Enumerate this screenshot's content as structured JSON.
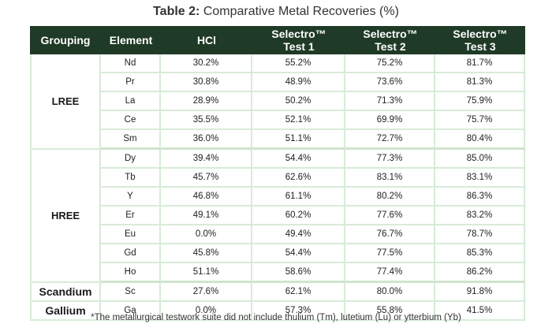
{
  "title": {
    "label": "Table 2:",
    "text": "Comparative Metal Recoveries (%)"
  },
  "headers": {
    "grouping": "Grouping",
    "element": "Element",
    "hcl": "HCl",
    "t1_a": "Selectro™",
    "t1_b": "Test 1",
    "t2_a": "Selectro™",
    "t2_b": "Test 2",
    "t3_a": "Selectro™",
    "t3_b": "Test 3"
  },
  "groups": [
    {
      "name": "LREE",
      "rows": [
        {
          "element": "Nd",
          "hcl": "30.2%",
          "t1": "55.2%",
          "t2": "75.2%",
          "t3": "81.7%"
        },
        {
          "element": "Pr",
          "hcl": "30.8%",
          "t1": "48.9%",
          "t2": "73.6%",
          "t3": "81.3%"
        },
        {
          "element": "La",
          "hcl": "28.9%",
          "t1": "50.2%",
          "t2": "71.3%",
          "t3": "75.9%"
        },
        {
          "element": "Ce",
          "hcl": "35.5%",
          "t1": "52.1%",
          "t2": "69.9%",
          "t3": "75.7%"
        },
        {
          "element": "Sm",
          "hcl": "36.0%",
          "t1": "51.1%",
          "t2": "72.7%",
          "t3": "80.4%"
        }
      ]
    },
    {
      "name": "HREE",
      "rows": [
        {
          "element": "Dy",
          "hcl": "39.4%",
          "t1": "54.4%",
          "t2": "77.3%",
          "t3": "85.0%"
        },
        {
          "element": "Tb",
          "hcl": "45.7%",
          "t1": "62.6%",
          "t2": "83.1%",
          "t3": "83.1%"
        },
        {
          "element": "Y",
          "hcl": "46.8%",
          "t1": "61.1%",
          "t2": "80.2%",
          "t3": "86.3%"
        },
        {
          "element": "Er",
          "hcl": "49.1%",
          "t1": "60.2%",
          "t2": "77.6%",
          "t3": "83.2%"
        },
        {
          "element": "Eu",
          "hcl": "0.0%",
          "t1": "49.4%",
          "t2": "76.7%",
          "t3": "78.7%"
        },
        {
          "element": "Gd",
          "hcl": "45.8%",
          "t1": "54.4%",
          "t2": "77.5%",
          "t3": "85.3%"
        },
        {
          "element": "Ho",
          "hcl": "51.1%",
          "t1": "58.6%",
          "t2": "77.4%",
          "t3": "86.2%"
        }
      ]
    },
    {
      "name": "Scandium",
      "rows": [
        {
          "element": "Sc",
          "hcl": "27.6%",
          "t1": "62.1%",
          "t2": "80.0%",
          "t3": "91.8%"
        }
      ]
    },
    {
      "name": "Gallium",
      "rows": [
        {
          "element": "Ga",
          "hcl": "0.0%",
          "t1": "57.3%",
          "t2": "55.8%",
          "t3": "41.5%"
        }
      ]
    }
  ],
  "footnote": "*The metallurgical testwork suite did not include thulium (Tm), lutetium (Lu) or ytterbium (Yb)",
  "colors": {
    "header_bg": "#1f3a26",
    "header_text": "#ffffff",
    "grid": "#d8ebd7"
  }
}
